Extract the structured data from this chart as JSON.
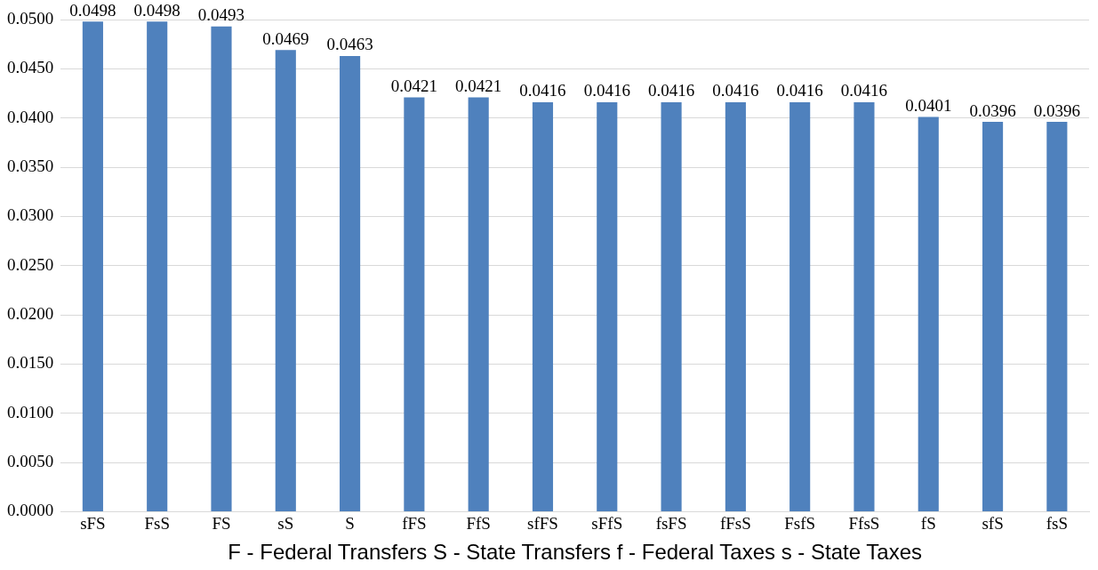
{
  "chart_data": {
    "type": "bar",
    "xlabel": "F - Federal Transfers S - State Transfers f - Federal Taxes s - State Taxes",
    "categories": [
      "sFS",
      "FsS",
      "FS",
      "sS",
      "S",
      "fFS",
      "FfS",
      "sfFS",
      "sFfS",
      "fsFS",
      "fFsS",
      "FsfS",
      "FfsS",
      "fS",
      "sfS",
      "fsS"
    ],
    "values": [
      0.0498,
      0.0498,
      0.0493,
      0.0469,
      0.0463,
      0.0421,
      0.0421,
      0.0416,
      0.0416,
      0.0416,
      0.0416,
      0.0416,
      0.0416,
      0.0401,
      0.0396,
      0.0396
    ],
    "color": "#4f81bd",
    "ylim": [
      0,
      0.05
    ],
    "yticks": [
      {
        "value": 0,
        "label": "0.0000"
      },
      {
        "value": 0.005,
        "label": "0.0050"
      },
      {
        "value": 0.01,
        "label": "0.0100"
      },
      {
        "value": 0.015,
        "label": "0.0150"
      },
      {
        "value": 0.02,
        "label": "0.0200"
      },
      {
        "value": 0.025,
        "label": "0.0250"
      },
      {
        "value": 0.03,
        "label": "0.0300"
      },
      {
        "value": 0.035,
        "label": "0.0350"
      },
      {
        "value": 0.04,
        "label": "0.0400"
      },
      {
        "value": 0.045,
        "label": "0.0450"
      },
      {
        "value": 0.05,
        "label": "0.0500"
      }
    ],
    "grid": "y",
    "data_labels": true,
    "legend": false
  }
}
